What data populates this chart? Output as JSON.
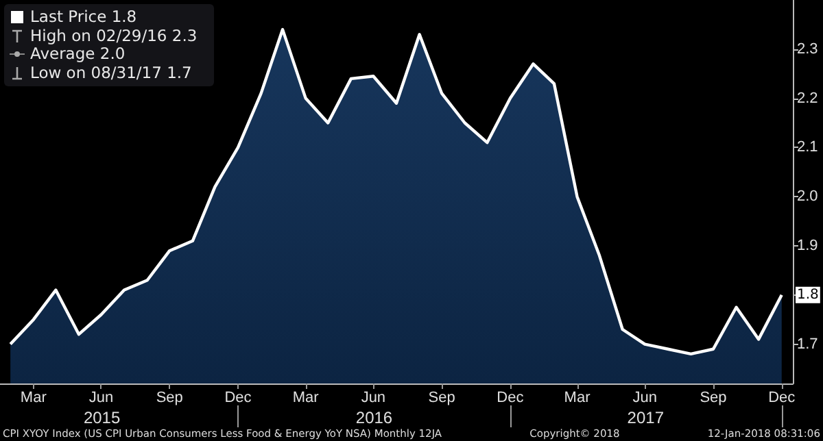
{
  "chart_data": {
    "type": "area",
    "x": [
      "2015-02-28",
      "2015-03-31",
      "2015-04-30",
      "2015-05-31",
      "2015-06-30",
      "2015-07-31",
      "2015-08-31",
      "2015-09-30",
      "2015-10-31",
      "2015-11-30",
      "2015-12-31",
      "2016-01-31",
      "2016-02-29",
      "2016-03-31",
      "2016-04-30",
      "2016-05-31",
      "2016-06-30",
      "2016-07-31",
      "2016-08-31",
      "2016-09-30",
      "2016-10-31",
      "2016-11-30",
      "2016-12-31",
      "2017-01-31",
      "2017-02-28",
      "2017-03-31",
      "2017-04-30",
      "2017-05-31",
      "2017-06-30",
      "2017-07-31",
      "2017-08-31",
      "2017-09-30",
      "2017-10-31",
      "2017-11-30",
      "2017-12-31"
    ],
    "series": [
      {
        "color": "#ffffff",
        "values": [
          1.7,
          1.75,
          1.81,
          1.72,
          1.76,
          1.81,
          1.83,
          1.89,
          1.91,
          2.02,
          2.1,
          2.21,
          2.34,
          2.2,
          2.15,
          2.24,
          2.245,
          2.19,
          2.33,
          2.21,
          2.15,
          2.11,
          2.2,
          2.27,
          2.23,
          2.0,
          1.88,
          1.73,
          1.7,
          1.69,
          1.68,
          1.69,
          1.775,
          1.71,
          1.8
        ]
      }
    ],
    "xlim": [
      "2015-02-14",
      "2018-01-15"
    ],
    "xticks": [
      {
        "value": "2015-03-31",
        "label": "Mar"
      },
      {
        "value": "2015-06-30",
        "label": "Jun"
      },
      {
        "value": "2015-09-30",
        "label": "Sep"
      },
      {
        "value": "2015-12-31",
        "label": "Dec"
      },
      {
        "value": "2016-03-31",
        "label": "Mar"
      },
      {
        "value": "2016-06-30",
        "label": "Jun"
      },
      {
        "value": "2016-09-30",
        "label": "Sep"
      },
      {
        "value": "2016-12-31",
        "label": "Dec"
      },
      {
        "value": "2017-03-31",
        "label": "Mar"
      },
      {
        "value": "2017-06-30",
        "label": "Jun"
      },
      {
        "value": "2017-09-30",
        "label": "Sep"
      },
      {
        "value": "2017-12-31",
        "label": "Dec"
      }
    ],
    "x2lim": [
      "2015-02-14",
      "2018-01-15"
    ],
    "x2ticks": [
      {
        "value": "2015-07-01",
        "label": "2015"
      },
      {
        "value": "2015-12-31",
        "label": null
      },
      {
        "value": "2016-07-01",
        "label": "2016"
      },
      {
        "value": "2016-12-31",
        "label": null
      },
      {
        "value": "2017-07-01",
        "label": "2017"
      },
      {
        "value": "2017-12-31",
        "label": null
      }
    ],
    "ylim": [
      1.62,
      2.4
    ],
    "yticks": [
      1.7,
      {
        "value": 1.8,
        "label": null
      },
      1.9,
      {
        "value": 2,
        "label": "2.0"
      },
      2.1,
      2.2,
      2.3
    ],
    "grid": false,
    "annotations": [
      "Last Price 1.8",
      "High on 02/29/16 2.3",
      "Average 2.0",
      "Low on 08/31/17 1.7",
      {
        "text": "1.8",
        "x": "2017-12-31",
        "y": 1.8
      },
      "CPI XYOY Index (US CPI Urban Consumers Less Food & Energy YoY NSA) Monthly 12JA",
      "Copyright© 2018",
      "12-Jan-2018 08:31:06"
    ]
  }
}
